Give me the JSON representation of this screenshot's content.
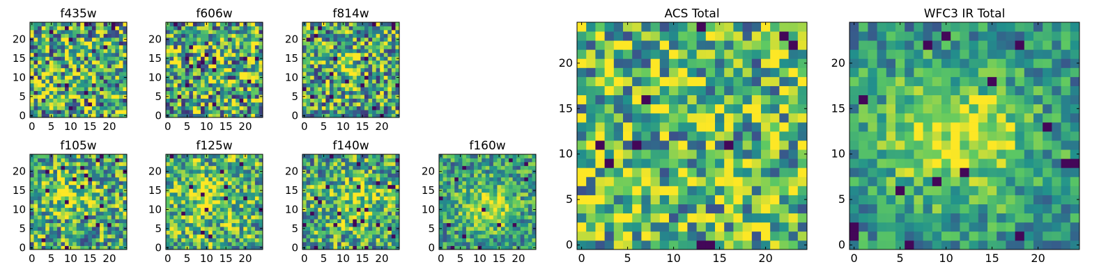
{
  "colormap": {
    "name": "viridis",
    "stops": [
      "#440154",
      "#3b528b",
      "#21918c",
      "#5ec962",
      "#fde725"
    ]
  },
  "colors": {
    "background": "#ffffff",
    "frame": "#000000"
  },
  "chart_data": [
    {
      "type": "heatmap",
      "title": "f435w",
      "grid": [
        25,
        25
      ],
      "xlim": [
        0,
        24
      ],
      "ylim": [
        0,
        24
      ],
      "xticks": [
        0,
        5,
        10,
        15,
        20
      ],
      "yticks": [
        0,
        5,
        10,
        15,
        20
      ],
      "pattern": "noise",
      "base": 0.62,
      "spread": 0.5,
      "blob": null,
      "seed": 11
    },
    {
      "type": "heatmap",
      "title": "f606w",
      "grid": [
        25,
        25
      ],
      "xlim": [
        0,
        24
      ],
      "ylim": [
        0,
        24
      ],
      "xticks": [
        0,
        5,
        10,
        15,
        20
      ],
      "yticks": [
        0,
        5,
        10,
        15,
        20
      ],
      "pattern": "noise",
      "base": 0.62,
      "spread": 0.5,
      "blob": null,
      "seed": 23
    },
    {
      "type": "heatmap",
      "title": "f814w",
      "grid": [
        25,
        25
      ],
      "xlim": [
        0,
        24
      ],
      "ylim": [
        0,
        24
      ],
      "xticks": [
        0,
        5,
        10,
        15,
        20
      ],
      "yticks": [
        0,
        5,
        10,
        15,
        20
      ],
      "pattern": "noise+source",
      "base": 0.58,
      "spread": 0.45,
      "blob": {
        "cx": 11,
        "cy": 13,
        "sx": 2.5,
        "sy": 3.5,
        "amp": 0.3
      },
      "seed": 37
    },
    {
      "type": "heatmap",
      "title": "f105w",
      "grid": [
        25,
        25
      ],
      "xlim": [
        0,
        24
      ],
      "ylim": [
        0,
        24
      ],
      "xticks": [
        0,
        5,
        10,
        15,
        20
      ],
      "yticks": [
        0,
        5,
        10,
        15,
        20
      ],
      "pattern": "noise+source",
      "base": 0.6,
      "spread": 0.4,
      "blob": {
        "cx": 10,
        "cy": 14,
        "sx": 4,
        "sy": 4,
        "amp": 0.25
      },
      "seed": 41
    },
    {
      "type": "heatmap",
      "title": "f125w",
      "grid": [
        25,
        25
      ],
      "xlim": [
        0,
        24
      ],
      "ylim": [
        0,
        24
      ],
      "xticks": [
        0,
        5,
        10,
        15,
        20
      ],
      "yticks": [
        0,
        5,
        10,
        15,
        20
      ],
      "pattern": "noise+source",
      "base": 0.64,
      "spread": 0.38,
      "blob": {
        "cx": 10,
        "cy": 13,
        "sx": 5,
        "sy": 5,
        "amp": 0.22
      },
      "seed": 53
    },
    {
      "type": "heatmap",
      "title": "f140w",
      "grid": [
        25,
        25
      ],
      "xlim": [
        0,
        24
      ],
      "ylim": [
        0,
        24
      ],
      "xticks": [
        0,
        5,
        10,
        15,
        20
      ],
      "yticks": [
        0,
        5,
        10,
        15,
        20
      ],
      "pattern": "noise+source",
      "base": 0.6,
      "spread": 0.38,
      "blob": {
        "cx": 13,
        "cy": 12,
        "sx": 5,
        "sy": 4,
        "amp": 0.25
      },
      "seed": 67
    },
    {
      "type": "heatmap",
      "title": "f160w",
      "grid": [
        25,
        25
      ],
      "xlim": [
        0,
        24
      ],
      "ylim": [
        0,
        24
      ],
      "xticks": [
        0,
        5,
        10,
        15,
        20
      ],
      "yticks": [
        0,
        5,
        10,
        15,
        20
      ],
      "pattern": "noise+source",
      "base": 0.55,
      "spread": 0.3,
      "blob": {
        "cx": 12,
        "cy": 11,
        "sx": 5,
        "sy": 4,
        "amp": 0.35
      },
      "seed": 79
    },
    {
      "type": "heatmap",
      "title": "ACS Total",
      "grid": [
        25,
        25
      ],
      "xlim": [
        0,
        24
      ],
      "ylim": [
        0,
        24
      ],
      "xticks": [
        0,
        5,
        10,
        15,
        20
      ],
      "yticks": [
        0,
        5,
        10,
        15,
        20
      ],
      "pattern": "noise",
      "base": 0.66,
      "spread": 0.42,
      "blob": null,
      "seed": 97
    },
    {
      "type": "heatmap",
      "title": "WFC3 IR Total",
      "grid": [
        25,
        25
      ],
      "xlim": [
        0,
        24
      ],
      "ylim": [
        0,
        24
      ],
      "xticks": [
        0,
        5,
        10,
        15,
        20
      ],
      "yticks": [
        0,
        5,
        10,
        15,
        20
      ],
      "pattern": "noise+source",
      "base": 0.5,
      "spread": 0.25,
      "blob": {
        "cx": 11,
        "cy": 12,
        "sx": 6,
        "sy": 5,
        "amp": 0.45
      },
      "seed": 101
    }
  ]
}
